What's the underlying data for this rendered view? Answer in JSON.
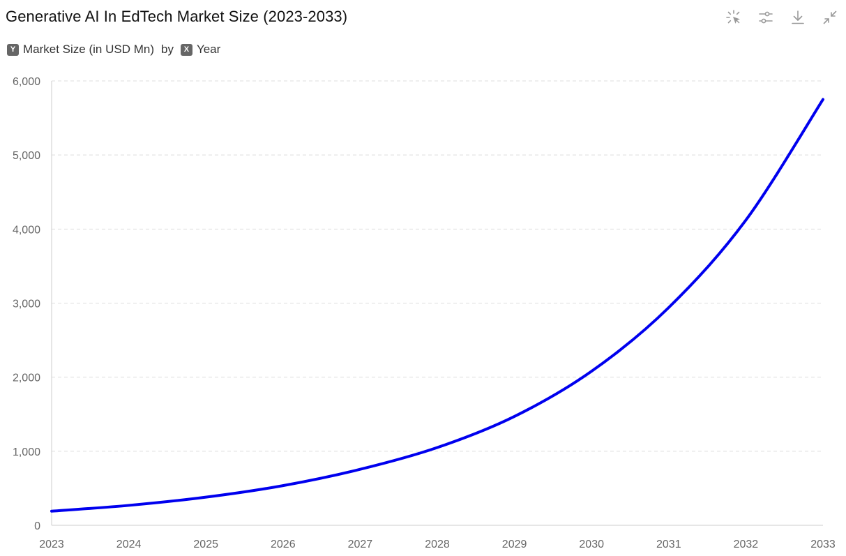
{
  "header": {
    "title": "Generative AI In EdTech Market Size (2023-2033)",
    "y_badge": "Y",
    "y_label": "Market Size (in USD Mn)",
    "by_text": "by",
    "x_badge": "X",
    "x_label": "Year"
  },
  "toolbar": {
    "icons": [
      "pointer-select-icon",
      "sliders-icon",
      "download-icon",
      "collapse-icon"
    ]
  },
  "colors": {
    "line": "#0000ee",
    "grid": "#dddddd",
    "axis": "#cccccc",
    "tick_text": "#666666",
    "icon": "#999999"
  },
  "chart_data": {
    "type": "line",
    "title": "Generative AI In EdTech Market Size (2023-2033)",
    "xlabel": "Year",
    "ylabel": "Market Size (in USD Mn)",
    "x": [
      "2023",
      "2024",
      "2025",
      "2026",
      "2027",
      "2028",
      "2029",
      "2030",
      "2031",
      "2032",
      "2033"
    ],
    "series": [
      {
        "name": "Market Size (in USD Mn)",
        "values": [
          191,
          269,
          380,
          536,
          756,
          1050,
          1470,
          2080,
          2940,
          4120,
          5750
        ]
      }
    ],
    "ylim": [
      0,
      6000
    ],
    "yticks": [
      0,
      1000,
      2000,
      3000,
      4000,
      5000,
      6000
    ],
    "ytick_labels": [
      "0",
      "1,000",
      "2,000",
      "3,000",
      "4,000",
      "5,000",
      "6,000"
    ],
    "grid": true,
    "legend": "none"
  }
}
